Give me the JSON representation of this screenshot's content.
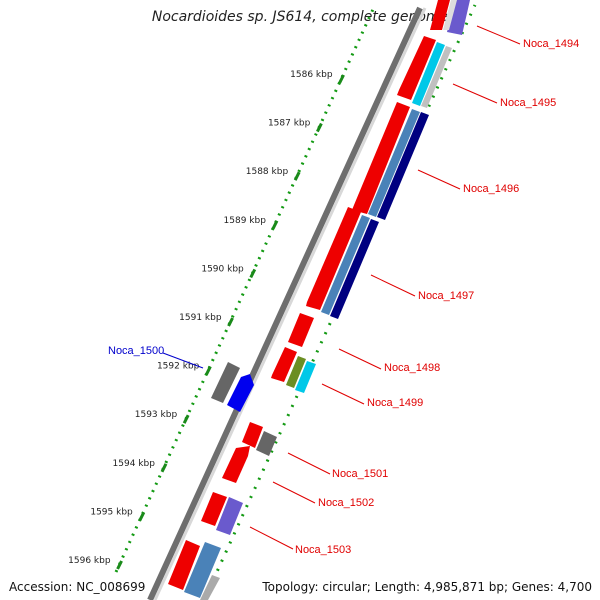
{
  "title": "Nocardioides sp. JS614, complete genome",
  "footer": {
    "accession": "Accession: NC_008699",
    "topology": "Topology: circular; Length: 4,985,871 bp; Genes: 4,700"
  },
  "ticks": [
    "1586 kbp",
    "1587 kbp",
    "1588 kbp",
    "1589 kbp",
    "1590 kbp",
    "1591 kbp",
    "1592 kbp",
    "1593 kbp",
    "1594 kbp",
    "1595 kbp",
    "1596 kbp"
  ],
  "gene_labels": [
    {
      "id": "noca-1494",
      "text": "Noca_1494",
      "color": "#e00000"
    },
    {
      "id": "noca-1495",
      "text": "Noca_1495",
      "color": "#e00000"
    },
    {
      "id": "noca-1496",
      "text": "Noca_1496",
      "color": "#e00000"
    },
    {
      "id": "noca-1497",
      "text": "Noca_1497",
      "color": "#e00000"
    },
    {
      "id": "noca-1498",
      "text": "Noca_1498",
      "color": "#e00000"
    },
    {
      "id": "noca-1499",
      "text": "Noca_1499",
      "color": "#e00000"
    },
    {
      "id": "noca-1500",
      "text": "Noca_1500",
      "color": "#0000cc"
    },
    {
      "id": "noca-1501",
      "text": "Noca_1501",
      "color": "#e00000"
    },
    {
      "id": "noca-1502",
      "text": "Noca_1502",
      "color": "#e00000"
    },
    {
      "id": "noca-1503",
      "text": "Noca_1503",
      "color": "#e00000"
    }
  ],
  "colors": {
    "cds": "#ee0000",
    "gray_feature": "#666666",
    "blue_feature": "#0000ee",
    "purple_feature": "#6a5acd",
    "cyan_feature": "#00c8e8",
    "steel_feature": "#4a82b8",
    "navy_feature": "#000080",
    "olive_feature": "#6b8e23",
    "backbone": "#9a9a9a",
    "tick_green": "#1a8a1a",
    "dots_green": "#139a13"
  }
}
